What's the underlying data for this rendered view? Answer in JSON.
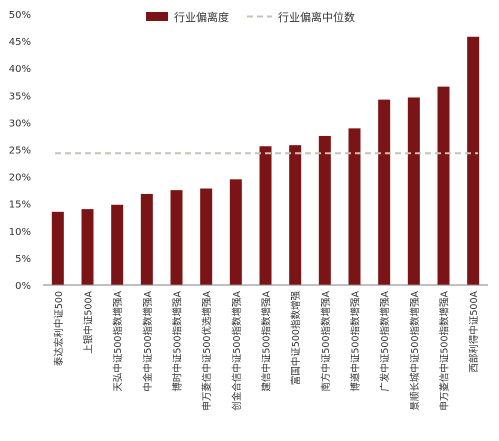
{
  "chart_data": {
    "type": "bar",
    "categories": [
      "泰达宏利中证500",
      "上银中证500A",
      "天弘中证500指数增强A",
      "中金中证500指数增强A",
      "博时中证500指数增强A",
      "申万菱信中证500优选增强A",
      "创金合信中证500指数增强A",
      "建信中证500指数增强A",
      "富国中证500指数增强",
      "南方中证500指数增强A",
      "博道中证500指数增强A",
      "广发中证500指数增强A",
      "景顺长城中证500指数增强A",
      "申万菱信中证500指数增强A",
      "西部利得中证500A"
    ],
    "series": [
      {
        "name": "行业偏离度",
        "color": "#7b1416",
        "values": [
          13.5,
          14.0,
          14.8,
          16.8,
          17.5,
          17.8,
          19.5,
          25.6,
          25.8,
          27.5,
          28.9,
          34.2,
          34.6,
          36.6,
          45.8
        ]
      }
    ],
    "reference_lines": [
      {
        "name": "行业偏离中位数",
        "value": 24.3,
        "color": "#c8c2b4",
        "style": "dashed"
      }
    ],
    "ylim": [
      0,
      50
    ],
    "yticks": [
      "0%",
      "5%",
      "10%",
      "15%",
      "20%",
      "25%",
      "30%",
      "35%",
      "40%",
      "45%",
      "50%"
    ],
    "xlabel": "",
    "ylabel": "",
    "title": "",
    "grid": false,
    "legend": "top-center"
  }
}
